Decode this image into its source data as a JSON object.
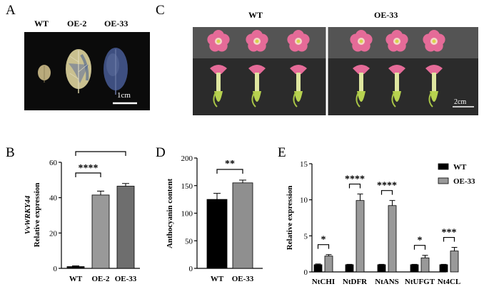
{
  "panels": {
    "A": {
      "letter": "A",
      "labels": [
        "WT",
        "OE-2",
        "OE-33"
      ],
      "scale_bar": "1cm"
    },
    "C": {
      "letter": "C",
      "labels": [
        "WT",
        "OE-33"
      ],
      "scale_bar": "2cm"
    },
    "B": {
      "letter": "B"
    },
    "D": {
      "letter": "D"
    },
    "E": {
      "letter": "E"
    }
  },
  "chart_data": [
    {
      "id": "B",
      "type": "bar",
      "categories": [
        "WT",
        "OE-2",
        "OE-33"
      ],
      "values": [
        1,
        41.5,
        46.5
      ],
      "errors": [
        0.4,
        2.2,
        1.5
      ],
      "colors": [
        "#000000",
        "#999999",
        "#6e6e6e"
      ],
      "ylabel_italic": "VvWRKY44",
      "ylabel_rest": "Relative expression",
      "ylim": [
        0,
        60
      ],
      "yticks": [
        0,
        20,
        40,
        60
      ],
      "significance": [
        {
          "from": 0,
          "to": 1,
          "label": "****"
        },
        {
          "from": 0,
          "to": 2,
          "label": "****"
        }
      ]
    },
    {
      "id": "D",
      "type": "bar",
      "categories": [
        "WT",
        "OE-33"
      ],
      "values": [
        125,
        155
      ],
      "errors": [
        11,
        5
      ],
      "colors": [
        "#000000",
        "#8f8f8f"
      ],
      "ylabel": "Anthocyanin content",
      "ylim": [
        0,
        200
      ],
      "yticks": [
        0,
        50,
        100,
        150,
        200
      ],
      "significance": [
        {
          "from": 0,
          "to": 1,
          "label": "**"
        }
      ]
    },
    {
      "id": "E",
      "type": "bar",
      "categories": [
        "NtCHI",
        "NtDFR",
        "NtANS",
        "NtUFGT",
        "Nt4CL"
      ],
      "series": [
        {
          "name": "WT",
          "values": [
            1,
            1,
            1,
            1,
            1
          ],
          "errors": [
            0.1,
            0.05,
            0.05,
            0.05,
            0.05
          ],
          "color": "#000000"
        },
        {
          "name": "OE-33",
          "values": [
            2.2,
            9.9,
            9.2,
            1.95,
            2.9
          ],
          "errors": [
            0.2,
            0.9,
            0.7,
            0.35,
            0.5
          ],
          "color": "#999999"
        }
      ],
      "ylabel": "Relative expression",
      "ylim": [
        0,
        15
      ],
      "yticks": [
        0,
        5,
        10,
        15
      ],
      "significance": [
        "*",
        "****",
        "****",
        "*",
        "***"
      ]
    }
  ]
}
